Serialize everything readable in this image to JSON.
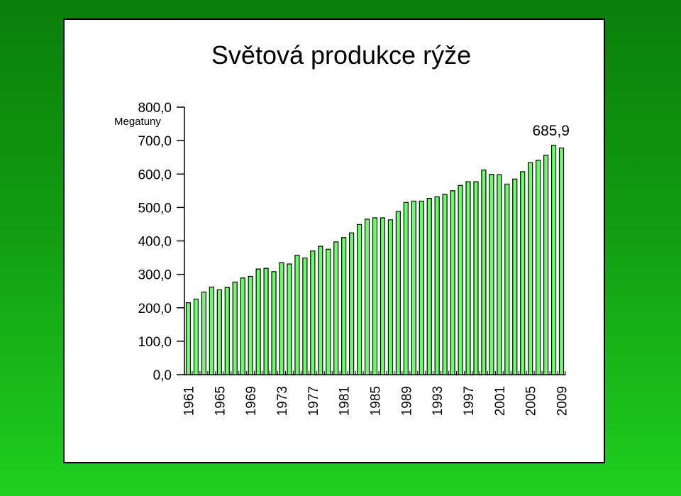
{
  "chart_data": {
    "type": "bar",
    "title": "Světová produkce rýže",
    "ylabel": "Megatuny",
    "ylim": [
      0,
      800
    ],
    "ytick_labels": [
      "0,0",
      "100,0",
      "200,0",
      "300,0",
      "400,0",
      "500,0",
      "600,0",
      "700,0",
      "800,0"
    ],
    "xtick_labels": [
      "1961",
      "1965",
      "1969",
      "1973",
      "1977",
      "1981",
      "1985",
      "1989",
      "1993",
      "1997",
      "2001",
      "2005",
      "2009"
    ],
    "annotation": "685,9",
    "categories": [
      1961,
      1962,
      1963,
      1964,
      1965,
      1966,
      1967,
      1968,
      1969,
      1970,
      1971,
      1972,
      1973,
      1974,
      1975,
      1976,
      1977,
      1978,
      1979,
      1980,
      1981,
      1982,
      1983,
      1984,
      1985,
      1986,
      1987,
      1988,
      1989,
      1990,
      1991,
      1992,
      1993,
      1994,
      1995,
      1996,
      1997,
      1998,
      1999,
      2000,
      2001,
      2002,
      2003,
      2004,
      2005,
      2006,
      2007,
      2008,
      2009
    ],
    "values": [
      215,
      226,
      247,
      262,
      254,
      261,
      277,
      289,
      294,
      316,
      318,
      308,
      335,
      331,
      357,
      349,
      370,
      384,
      375,
      397,
      410,
      424,
      449,
      465,
      469,
      469,
      463,
      488,
      515,
      519,
      519,
      527,
      532,
      539,
      550,
      566,
      577,
      577,
      612,
      599,
      598,
      570,
      585,
      607,
      634,
      641,
      656,
      686,
      678
    ],
    "bar_color": "#66ff66",
    "grid": false
  }
}
